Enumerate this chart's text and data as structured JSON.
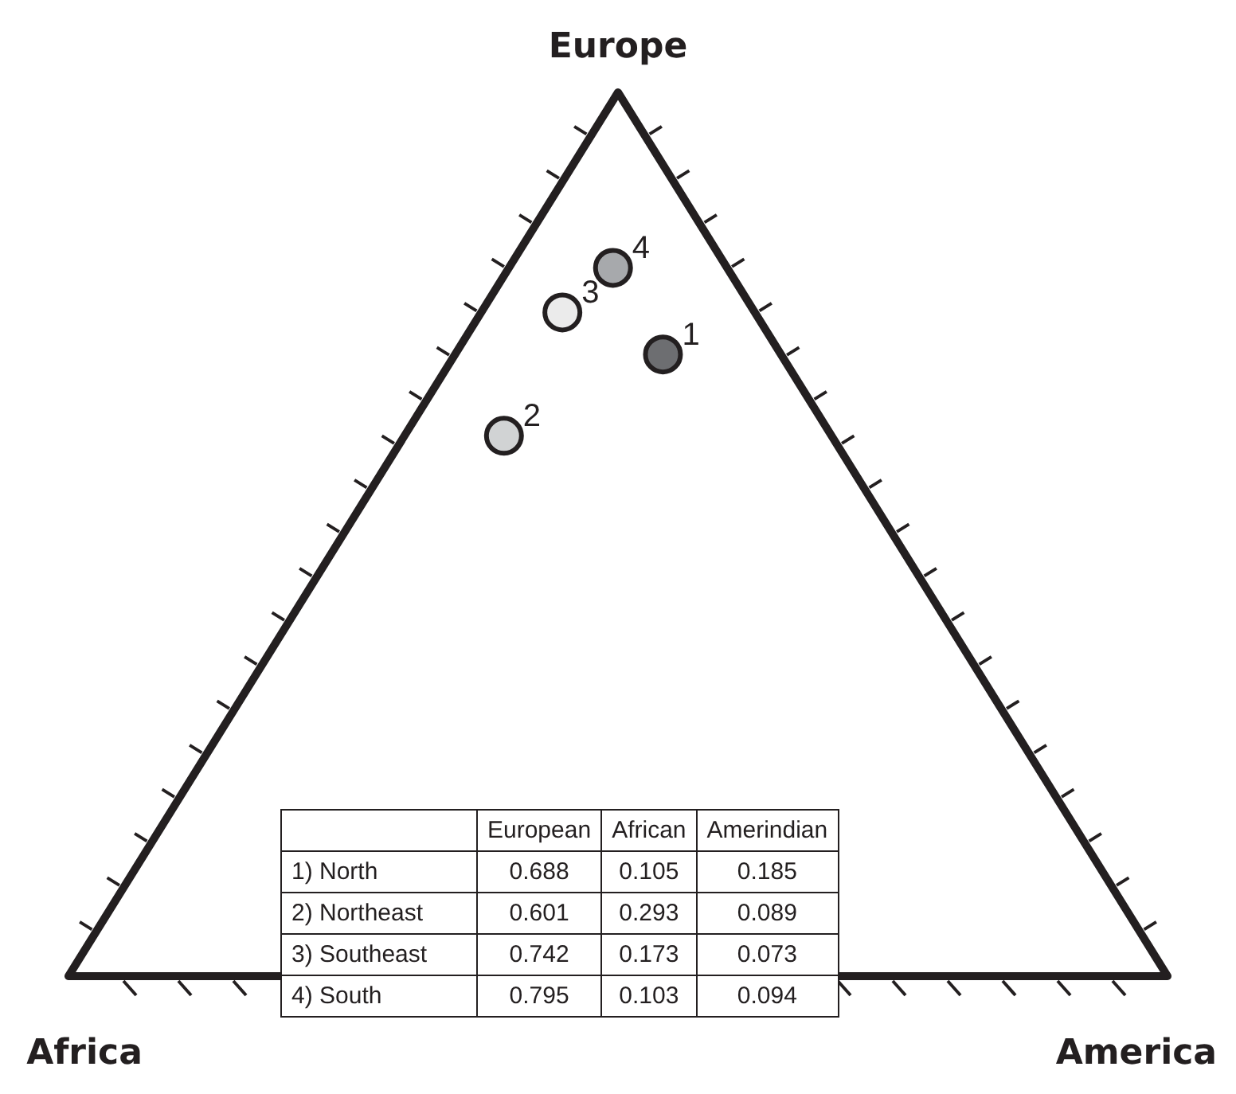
{
  "chart_data": {
    "type": "other",
    "categories": [
      "1) North",
      "2) Northeast",
      "3) Southeast",
      "4) South"
    ],
    "series": [
      {
        "name": "European",
        "values": [
          0.688,
          0.601,
          0.742,
          0.795
        ]
      },
      {
        "name": "African",
        "values": [
          0.105,
          0.293,
          0.173,
          0.103
        ]
      },
      {
        "name": "Amerindian",
        "values": [
          0.185,
          0.089,
          0.073,
          0.094
        ]
      }
    ],
    "colors": [
      "#6d6e71",
      "#d1d3d4",
      "#ebebeb",
      "#a7a9ac"
    ],
    "annotations": [
      "Europe",
      "Africa",
      "America",
      "1",
      "2",
      "3",
      "4"
    ],
    "data_labels": true
  }
}
